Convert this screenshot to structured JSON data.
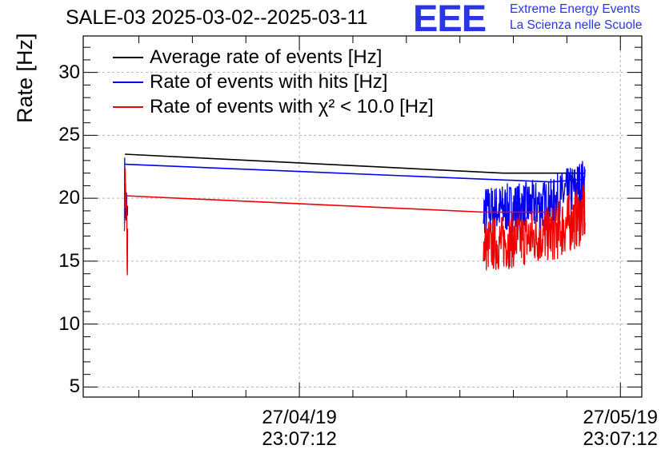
{
  "header": {
    "title": "SALE-03 2025-03-02--2025-03-11",
    "logo_text": "EEE",
    "tagline_1": "Extreme Energy Events",
    "tagline_2": "La Scienza nelle Scuole"
  },
  "colors": {
    "brand": "#2a35e6",
    "average": "#000000",
    "hits": "#0000ee",
    "chi2": "#ee0000",
    "grid": "#b4b4b4"
  },
  "chart_data": {
    "type": "line",
    "title": "SALE-03 2025-03-02--2025-03-11",
    "ylabel": "Rate [Hz]",
    "xlabel": "",
    "ylim": [
      4.2,
      32.9
    ],
    "yticks": [
      "5",
      "10",
      "15",
      "20",
      "25",
      "30"
    ],
    "xlim_days": [
      -50.2,
      2.0
    ],
    "xticks": [
      {
        "pos_days": -30,
        "date": "27/04/19",
        "time": "23:07:12"
      },
      {
        "pos_days": 0,
        "date": "27/05/19",
        "time": "23:07:12"
      }
    ],
    "grid": true,
    "legend_position": "top-left",
    "series": [
      {
        "name": "Average rate of events [Hz]",
        "key": "average",
        "points": [
          [
            -46.3,
            23.5
          ],
          [
            -11.0,
            22.0
          ],
          [
            -3.3,
            22.0
          ]
        ]
      },
      {
        "name": "Rate of events with hits [Hz]",
        "key": "hits",
        "points": [
          [
            -46.3,
            22.7
          ],
          [
            -6.5,
            21.3
          ],
          [
            -3.3,
            21.5
          ]
        ],
        "noisy_segments": [
          {
            "start": -46.35,
            "end": -46.05,
            "from": 21.0,
            "to": 17.5,
            "amp": 3.0
          },
          {
            "start": -12.8,
            "end": -6.2,
            "from": 19.0,
            "to": 19.6,
            "amp": 2.0
          },
          {
            "start": -6.2,
            "end": -3.3,
            "from": 19.8,
            "to": 21.3,
            "amp": 2.0
          }
        ]
      },
      {
        "name": "Rate of events with χ² < 10.0 [Hz]",
        "key": "chi2",
        "points": [
          [
            -46.3,
            20.2
          ],
          [
            -12.8,
            18.9
          ],
          [
            -6.5,
            18.9
          ]
        ],
        "noisy_segments": [
          {
            "start": -46.35,
            "end": -46.05,
            "from": 20.0,
            "to": 16.8,
            "amp": 3.5
          },
          {
            "start": -12.8,
            "end": -6.2,
            "from": 16.2,
            "to": 17.2,
            "amp": 2.2
          },
          {
            "start": -6.2,
            "end": -3.3,
            "from": 17.3,
            "to": 18.8,
            "amp": 2.4
          }
        ]
      }
    ],
    "legend": [
      {
        "label": "Average rate of events [Hz]",
        "key": "average"
      },
      {
        "label": "Rate of events with hits [Hz]",
        "key": "hits"
      },
      {
        "label": "Rate of events with χ² < 10.0 [Hz]",
        "key": "chi2"
      }
    ]
  }
}
